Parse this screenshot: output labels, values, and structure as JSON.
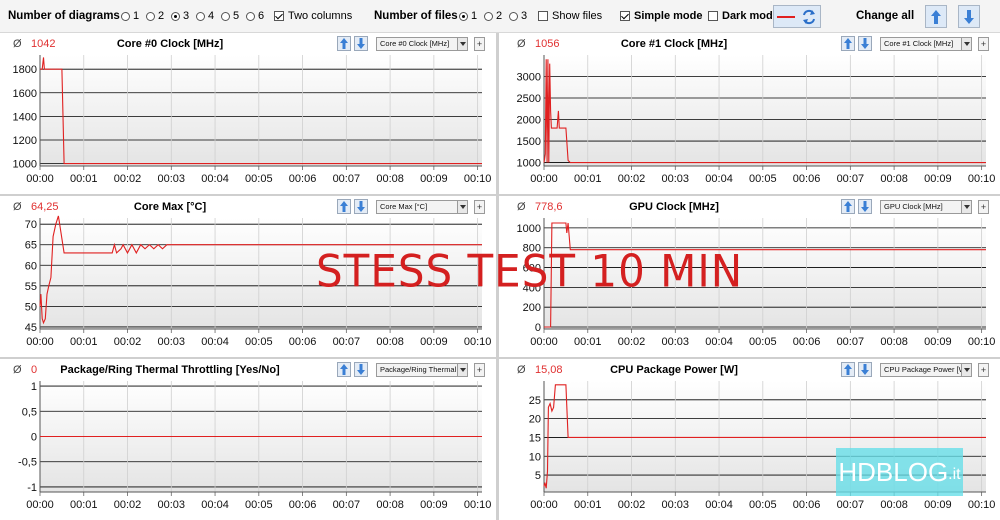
{
  "toolbar": {
    "diagrams_label": "Number of diagrams",
    "diagram_options": [
      "1",
      "2",
      "3",
      "4",
      "5",
      "6"
    ],
    "diagram_selected": "3",
    "two_columns_label": "Two columns",
    "two_columns_checked": true,
    "files_label": "Number of files",
    "file_options": [
      "1",
      "2",
      "3"
    ],
    "file_selected": "1",
    "show_files_label": "Show files",
    "show_files_checked": false,
    "simple_mode_label": "Simple mode",
    "simple_mode_checked": true,
    "dark_mode_label": "Dark mode",
    "dark_mode_checked": false,
    "change_all_label": "Change all"
  },
  "x_ticks": [
    "00:00",
    "00:01",
    "00:02",
    "00:03",
    "00:04",
    "00:05",
    "00:06",
    "00:07",
    "00:08",
    "00:09",
    "00:10"
  ],
  "panels": [
    {
      "avg_symbol": "Ø",
      "avg_value": "1042",
      "title": "Core #0 Clock [MHz]",
      "select": "Core #0 Clock [MHz]"
    },
    {
      "avg_symbol": "Ø",
      "avg_value": "1056",
      "title": "Core #1 Clock [MHz]",
      "select": "Core #1 Clock [MHz]"
    },
    {
      "avg_symbol": "Ø",
      "avg_value": "64,25",
      "title": "Core Max [°C]",
      "select": "Core Max [°C]"
    },
    {
      "avg_symbol": "Ø",
      "avg_value": "778,6",
      "title": "GPU Clock [MHz]",
      "select": "GPU Clock [MHz]"
    },
    {
      "avg_symbol": "Ø",
      "avg_value": "0",
      "title": "Package/Ring Thermal Throttling [Yes/No]",
      "select": "Package/Ring Thermal Th"
    },
    {
      "avg_symbol": "Ø",
      "avg_value": "15,08",
      "title": "CPU Package Power [W]",
      "select": "CPU Package Power [W]"
    }
  ],
  "overlay_text": "STESS TEST 10 MIN",
  "logo": {
    "part1": "HD",
    "part2": "BLOG",
    "part3": ".it"
  },
  "colors": {
    "line": "#e02020",
    "avg_value": "#e03030",
    "plot_bg_top": "#ffffff",
    "plot_bg_bottom": "#e4e4e4",
    "button_bg": "#dde9f7",
    "arrow_blue": "#3a7fd5"
  },
  "chart_data": [
    {
      "type": "line",
      "title": "Core #0 Clock [MHz]",
      "ylim": [
        980,
        1920
      ],
      "y_ticks": [
        1000,
        1200,
        1400,
        1600,
        1800
      ],
      "x_unit": "minutes",
      "xlim": [
        0,
        10.1
      ],
      "series": [
        {
          "x": [
            0,
            0.05,
            0.08,
            0.1,
            0.15,
            0.5,
            0.55,
            10.1
          ],
          "y": [
            1800,
            1800,
            1900,
            1800,
            1800,
            1800,
            1000,
            1000
          ]
        }
      ]
    },
    {
      "type": "line",
      "title": "Core #1 Clock [MHz]",
      "ylim": [
        920,
        3500
      ],
      "y_ticks": [
        1000,
        1500,
        2000,
        2500,
        3000
      ],
      "x_unit": "minutes",
      "xlim": [
        0,
        10.1
      ],
      "series": [
        {
          "x": [
            0,
            0.03,
            0.05,
            0.07,
            0.09,
            0.11,
            0.13,
            0.15,
            0.17,
            0.2,
            0.25,
            0.3,
            0.33,
            0.35,
            0.4,
            0.45,
            0.5,
            0.55,
            0.6,
            10.1
          ],
          "y": [
            1000,
            1200,
            3400,
            1000,
            3400,
            1000,
            3300,
            2200,
            1800,
            1800,
            1800,
            1800,
            2200,
            1800,
            1800,
            1800,
            1800,
            1050,
            1000,
            1000
          ]
        }
      ]
    },
    {
      "type": "line",
      "title": "Core Max [°C]",
      "ylim": [
        44.5,
        71.5
      ],
      "y_ticks": [
        45,
        50,
        55,
        60,
        65,
        70
      ],
      "x_unit": "minutes",
      "xlim": [
        0,
        10.1
      ],
      "series": [
        {
          "x": [
            0,
            0.02,
            0.05,
            0.08,
            0.12,
            0.16,
            0.2,
            0.25,
            0.3,
            0.36,
            0.42,
            0.55,
            1.65,
            1.7,
            1.75,
            1.85,
            1.9,
            2.0,
            2.1,
            2.2,
            2.3,
            2.4,
            2.5,
            2.6,
            2.7,
            2.8,
            2.9,
            3.0,
            4.0,
            5.0,
            6.0,
            7.0,
            8.0,
            9.0,
            10.1
          ],
          "y": [
            50,
            53,
            47,
            46,
            47,
            53,
            55,
            57,
            67,
            70,
            72,
            63,
            63,
            65,
            63,
            64,
            65,
            63,
            65,
            63,
            65,
            64,
            65,
            64,
            65,
            64,
            65,
            65,
            65,
            65,
            65,
            65,
            65,
            65,
            65
          ]
        }
      ]
    },
    {
      "type": "line",
      "title": "GPU Clock [MHz]",
      "ylim": [
        -20,
        1100
      ],
      "y_ticks": [
        0,
        200,
        400,
        600,
        800,
        1000
      ],
      "x_unit": "minutes",
      "xlim": [
        0,
        10.1
      ],
      "series": [
        {
          "x": [
            0,
            0.15,
            0.18,
            0.3,
            0.4,
            0.5,
            0.52,
            0.55,
            0.6,
            0.8,
            1.0,
            1.5,
            2.0,
            3.0,
            4.0,
            5.0,
            6.0,
            7.0,
            8.0,
            9.0,
            10.1
          ],
          "y": [
            0,
            0,
            1050,
            1050,
            1050,
            1050,
            950,
            1050,
            780,
            780,
            780,
            780,
            780,
            780,
            780,
            780,
            780,
            780,
            780,
            780,
            780
          ]
        }
      ]
    },
    {
      "type": "line",
      "title": "Package/Ring Thermal Throttling [Yes/No]",
      "ylim": [
        -1.1,
        1.1
      ],
      "y_ticks": [
        -1,
        -0.5,
        0,
        0.5,
        1
      ],
      "y_tick_labels": [
        "-1",
        "-0,5",
        "0",
        "0,5",
        "1"
      ],
      "x_unit": "minutes",
      "xlim": [
        0,
        10.1
      ],
      "series": [
        {
          "x": [
            0,
            10.1
          ],
          "y": [
            0,
            0
          ]
        }
      ]
    },
    {
      "type": "line",
      "title": "CPU Package Power [W]",
      "ylim": [
        0.5,
        30
      ],
      "y_ticks": [
        5,
        10,
        15,
        20,
        25
      ],
      "x_unit": "minutes",
      "xlim": [
        0,
        10.1
      ],
      "series": [
        {
          "x": [
            0,
            0.02,
            0.05,
            0.08,
            0.1,
            0.14,
            0.18,
            0.22,
            0.26,
            0.3,
            0.34,
            0.4,
            0.46,
            0.5,
            0.55,
            0.6,
            1.0,
            2.0,
            3.0,
            4.0,
            5.0,
            6.0,
            7.0,
            8.0,
            9.0,
            10.1
          ],
          "y": [
            2,
            3,
            1.5,
            6,
            23,
            24,
            22,
            23,
            29,
            29,
            29,
            29,
            29,
            29,
            15,
            15,
            15,
            15,
            15,
            15,
            15,
            15,
            15,
            15,
            15,
            15
          ]
        }
      ]
    }
  ]
}
